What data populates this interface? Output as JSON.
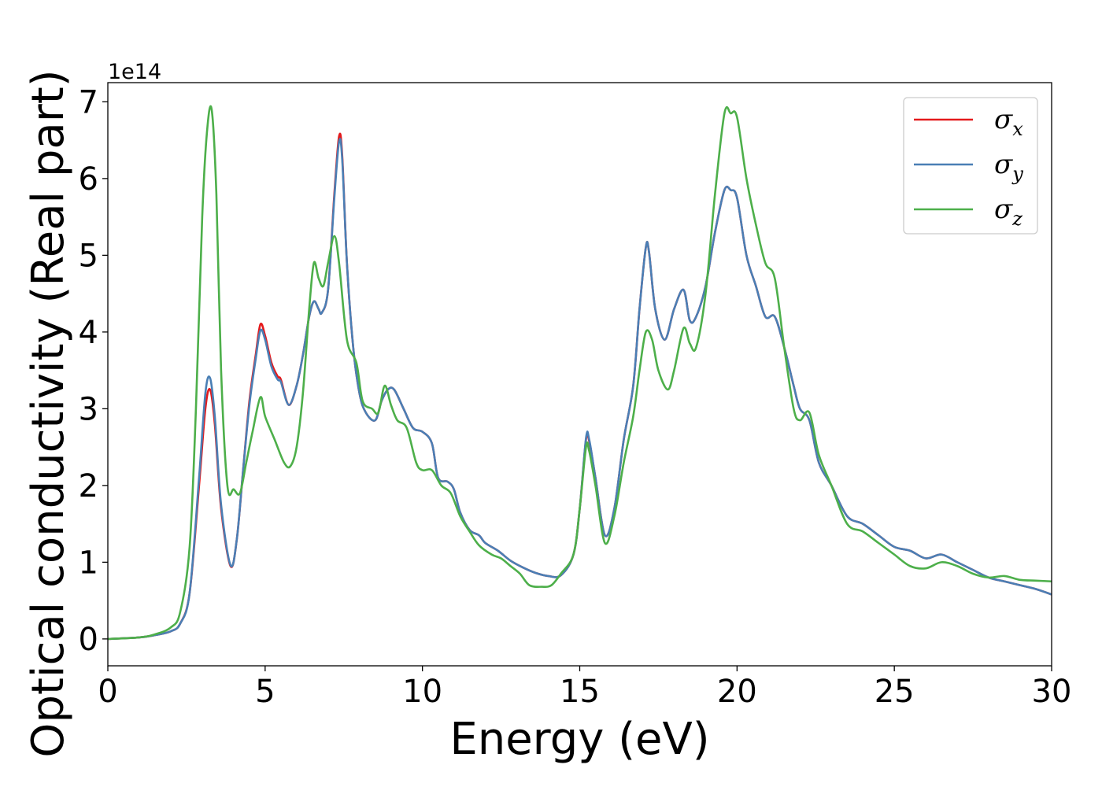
{
  "chart_data": {
    "type": "line",
    "xlabel": "Energy (eV)",
    "ylabel": "Optical conductivity (Real part)",
    "y_offset_label": "1e14",
    "xlim": [
      0,
      30
    ],
    "ylim": [
      -0.35,
      7.25
    ],
    "x_ticks": [
      0,
      5,
      10,
      15,
      20,
      25,
      30
    ],
    "y_ticks": [
      0,
      1,
      2,
      3,
      4,
      5,
      6,
      7
    ],
    "grid": false,
    "legend_position": "top-right",
    "series": [
      {
        "name": "σx",
        "legend_symbol": "σ",
        "legend_sub": "x",
        "color": "#e41a1c",
        "points": [
          [
            0,
            0
          ],
          [
            1,
            0.02
          ],
          [
            1.5,
            0.05
          ],
          [
            2,
            0.1
          ],
          [
            2.3,
            0.2
          ],
          [
            2.6,
            0.6
          ],
          [
            2.9,
            2.0
          ],
          [
            3.1,
            3.0
          ],
          [
            3.25,
            3.25
          ],
          [
            3.4,
            2.8
          ],
          [
            3.6,
            1.7
          ],
          [
            3.9,
            0.95
          ],
          [
            4.1,
            1.3
          ],
          [
            4.3,
            2.2
          ],
          [
            4.5,
            3.1
          ],
          [
            4.7,
            3.7
          ],
          [
            4.85,
            4.1
          ],
          [
            5.0,
            3.95
          ],
          [
            5.2,
            3.6
          ],
          [
            5.4,
            3.42
          ],
          [
            5.5,
            3.38
          ],
          [
            5.75,
            3.05
          ],
          [
            6.0,
            3.3
          ],
          [
            6.2,
            3.7
          ],
          [
            6.4,
            4.2
          ],
          [
            6.55,
            4.4
          ],
          [
            6.7,
            4.3
          ],
          [
            6.8,
            4.25
          ],
          [
            7.0,
            4.55
          ],
          [
            7.2,
            5.8
          ],
          [
            7.35,
            6.55
          ],
          [
            7.45,
            6.3
          ],
          [
            7.6,
            4.9
          ],
          [
            7.8,
            3.8
          ],
          [
            8.0,
            3.2
          ],
          [
            8.2,
            2.95
          ],
          [
            8.5,
            2.85
          ],
          [
            8.7,
            3.1
          ],
          [
            8.9,
            3.25
          ],
          [
            9.1,
            3.25
          ],
          [
            9.4,
            3.0
          ],
          [
            9.7,
            2.75
          ],
          [
            10.0,
            2.7
          ],
          [
            10.3,
            2.55
          ],
          [
            10.5,
            2.1
          ],
          [
            10.8,
            2.05
          ],
          [
            11.0,
            1.95
          ],
          [
            11.2,
            1.65
          ],
          [
            11.5,
            1.42
          ],
          [
            11.8,
            1.35
          ],
          [
            12.0,
            1.25
          ],
          [
            12.4,
            1.15
          ],
          [
            12.8,
            1.02
          ],
          [
            13.2,
            0.93
          ],
          [
            13.6,
            0.86
          ],
          [
            14.0,
            0.82
          ],
          [
            14.4,
            0.83
          ],
          [
            14.8,
            1.1
          ],
          [
            15.0,
            1.7
          ],
          [
            15.2,
            2.6
          ],
          [
            15.3,
            2.58
          ],
          [
            15.5,
            2.1
          ],
          [
            15.8,
            1.35
          ],
          [
            16.1,
            1.7
          ],
          [
            16.4,
            2.6
          ],
          [
            16.7,
            3.3
          ],
          [
            16.9,
            4.3
          ],
          [
            17.1,
            5.1
          ],
          [
            17.2,
            5.05
          ],
          [
            17.4,
            4.3
          ],
          [
            17.7,
            3.9
          ],
          [
            18.0,
            4.3
          ],
          [
            18.3,
            4.55
          ],
          [
            18.5,
            4.15
          ],
          [
            18.7,
            4.2
          ],
          [
            19.0,
            4.6
          ],
          [
            19.3,
            5.3
          ],
          [
            19.6,
            5.85
          ],
          [
            19.8,
            5.85
          ],
          [
            20.0,
            5.75
          ],
          [
            20.3,
            5.0
          ],
          [
            20.6,
            4.6
          ],
          [
            20.9,
            4.2
          ],
          [
            21.2,
            4.2
          ],
          [
            21.5,
            3.8
          ],
          [
            21.8,
            3.3
          ],
          [
            22.0,
            3.0
          ],
          [
            22.3,
            2.85
          ],
          [
            22.6,
            2.3
          ],
          [
            23.0,
            2.0
          ],
          [
            23.5,
            1.6
          ],
          [
            24.0,
            1.5
          ],
          [
            24.5,
            1.35
          ],
          [
            25.0,
            1.2
          ],
          [
            25.5,
            1.15
          ],
          [
            26.0,
            1.05
          ],
          [
            26.5,
            1.1
          ],
          [
            27.0,
            1.0
          ],
          [
            27.5,
            0.9
          ],
          [
            28.0,
            0.8
          ],
          [
            28.5,
            0.75
          ],
          [
            29.0,
            0.7
          ],
          [
            29.5,
            0.65
          ],
          [
            30.0,
            0.58
          ]
        ]
      },
      {
        "name": "σy",
        "legend_symbol": "σ",
        "legend_sub": "y",
        "color": "#4a7fb5",
        "points": [
          [
            0,
            0
          ],
          [
            1,
            0.02
          ],
          [
            1.5,
            0.05
          ],
          [
            2,
            0.1
          ],
          [
            2.3,
            0.2
          ],
          [
            2.6,
            0.6
          ],
          [
            2.9,
            2.1
          ],
          [
            3.1,
            3.2
          ],
          [
            3.25,
            3.4
          ],
          [
            3.4,
            2.9
          ],
          [
            3.6,
            1.75
          ],
          [
            3.9,
            0.96
          ],
          [
            4.1,
            1.3
          ],
          [
            4.3,
            2.2
          ],
          [
            4.5,
            3.05
          ],
          [
            4.7,
            3.65
          ],
          [
            4.85,
            4.02
          ],
          [
            5.0,
            3.9
          ],
          [
            5.2,
            3.55
          ],
          [
            5.4,
            3.38
          ],
          [
            5.5,
            3.35
          ],
          [
            5.75,
            3.05
          ],
          [
            6.0,
            3.3
          ],
          [
            6.2,
            3.7
          ],
          [
            6.4,
            4.2
          ],
          [
            6.55,
            4.4
          ],
          [
            6.7,
            4.3
          ],
          [
            6.8,
            4.25
          ],
          [
            7.0,
            4.55
          ],
          [
            7.2,
            5.75
          ],
          [
            7.35,
            6.48
          ],
          [
            7.45,
            6.25
          ],
          [
            7.6,
            4.9
          ],
          [
            7.8,
            3.8
          ],
          [
            8.0,
            3.2
          ],
          [
            8.2,
            2.95
          ],
          [
            8.5,
            2.85
          ],
          [
            8.7,
            3.1
          ],
          [
            8.9,
            3.25
          ],
          [
            9.1,
            3.25
          ],
          [
            9.4,
            3.0
          ],
          [
            9.7,
            2.75
          ],
          [
            10.0,
            2.7
          ],
          [
            10.3,
            2.55
          ],
          [
            10.5,
            2.1
          ],
          [
            10.8,
            2.05
          ],
          [
            11.0,
            1.95
          ],
          [
            11.2,
            1.65
          ],
          [
            11.5,
            1.42
          ],
          [
            11.8,
            1.35
          ],
          [
            12.0,
            1.25
          ],
          [
            12.4,
            1.15
          ],
          [
            12.8,
            1.02
          ],
          [
            13.2,
            0.93
          ],
          [
            13.6,
            0.86
          ],
          [
            14.0,
            0.82
          ],
          [
            14.4,
            0.83
          ],
          [
            14.8,
            1.1
          ],
          [
            15.0,
            1.7
          ],
          [
            15.2,
            2.62
          ],
          [
            15.3,
            2.6
          ],
          [
            15.5,
            2.1
          ],
          [
            15.8,
            1.35
          ],
          [
            16.1,
            1.7
          ],
          [
            16.4,
            2.6
          ],
          [
            16.7,
            3.3
          ],
          [
            16.9,
            4.3
          ],
          [
            17.1,
            5.1
          ],
          [
            17.2,
            5.05
          ],
          [
            17.4,
            4.3
          ],
          [
            17.7,
            3.9
          ],
          [
            18.0,
            4.3
          ],
          [
            18.3,
            4.55
          ],
          [
            18.5,
            4.15
          ],
          [
            18.7,
            4.2
          ],
          [
            19.0,
            4.6
          ],
          [
            19.3,
            5.3
          ],
          [
            19.6,
            5.85
          ],
          [
            19.8,
            5.85
          ],
          [
            20.0,
            5.75
          ],
          [
            20.3,
            5.0
          ],
          [
            20.6,
            4.6
          ],
          [
            20.9,
            4.2
          ],
          [
            21.2,
            4.2
          ],
          [
            21.5,
            3.8
          ],
          [
            21.8,
            3.3
          ],
          [
            22.0,
            3.0
          ],
          [
            22.3,
            2.85
          ],
          [
            22.6,
            2.3
          ],
          [
            23.0,
            2.0
          ],
          [
            23.5,
            1.6
          ],
          [
            24.0,
            1.5
          ],
          [
            24.5,
            1.35
          ],
          [
            25.0,
            1.2
          ],
          [
            25.5,
            1.15
          ],
          [
            26.0,
            1.05
          ],
          [
            26.5,
            1.1
          ],
          [
            27.0,
            1.0
          ],
          [
            27.5,
            0.9
          ],
          [
            28.0,
            0.8
          ],
          [
            28.5,
            0.75
          ],
          [
            29.0,
            0.7
          ],
          [
            29.5,
            0.65
          ],
          [
            30.0,
            0.58
          ]
        ]
      },
      {
        "name": "σz",
        "legend_symbol": "σ",
        "legend_sub": "z",
        "color": "#4daf4a",
        "points": [
          [
            0,
            0
          ],
          [
            1,
            0.02
          ],
          [
            1.5,
            0.06
          ],
          [
            2,
            0.15
          ],
          [
            2.3,
            0.35
          ],
          [
            2.6,
            1.2
          ],
          [
            2.8,
            3.0
          ],
          [
            3.0,
            5.5
          ],
          [
            3.15,
            6.6
          ],
          [
            3.3,
            6.9
          ],
          [
            3.45,
            5.8
          ],
          [
            3.6,
            3.5
          ],
          [
            3.8,
            2.0
          ],
          [
            4.0,
            1.95
          ],
          [
            4.2,
            1.9
          ],
          [
            4.4,
            2.3
          ],
          [
            4.6,
            2.7
          ],
          [
            4.85,
            3.15
          ],
          [
            5.0,
            2.9
          ],
          [
            5.3,
            2.6
          ],
          [
            5.6,
            2.3
          ],
          [
            5.8,
            2.25
          ],
          [
            6.0,
            2.5
          ],
          [
            6.2,
            3.2
          ],
          [
            6.4,
            4.3
          ],
          [
            6.55,
            4.9
          ],
          [
            6.7,
            4.7
          ],
          [
            6.85,
            4.6
          ],
          [
            7.0,
            4.9
          ],
          [
            7.2,
            5.25
          ],
          [
            7.35,
            4.9
          ],
          [
            7.6,
            3.9
          ],
          [
            7.9,
            3.6
          ],
          [
            8.1,
            3.1
          ],
          [
            8.4,
            3.0
          ],
          [
            8.6,
            2.95
          ],
          [
            8.8,
            3.3
          ],
          [
            9.0,
            3.05
          ],
          [
            9.2,
            2.85
          ],
          [
            9.5,
            2.75
          ],
          [
            9.8,
            2.3
          ],
          [
            10.0,
            2.2
          ],
          [
            10.3,
            2.2
          ],
          [
            10.6,
            2.0
          ],
          [
            10.9,
            1.9
          ],
          [
            11.2,
            1.6
          ],
          [
            11.5,
            1.4
          ],
          [
            11.8,
            1.22
          ],
          [
            12.2,
            1.1
          ],
          [
            12.5,
            1.05
          ],
          [
            12.8,
            0.95
          ],
          [
            13.1,
            0.85
          ],
          [
            13.4,
            0.7
          ],
          [
            13.8,
            0.68
          ],
          [
            14.1,
            0.7
          ],
          [
            14.4,
            0.85
          ],
          [
            14.8,
            1.1
          ],
          [
            15.0,
            1.7
          ],
          [
            15.2,
            2.5
          ],
          [
            15.3,
            2.45
          ],
          [
            15.5,
            2.0
          ],
          [
            15.8,
            1.25
          ],
          [
            16.1,
            1.6
          ],
          [
            16.4,
            2.3
          ],
          [
            16.7,
            2.9
          ],
          [
            16.9,
            3.5
          ],
          [
            17.1,
            4.0
          ],
          [
            17.3,
            3.9
          ],
          [
            17.5,
            3.5
          ],
          [
            17.8,
            3.25
          ],
          [
            18.0,
            3.5
          ],
          [
            18.3,
            4.05
          ],
          [
            18.5,
            3.85
          ],
          [
            18.7,
            3.8
          ],
          [
            19.0,
            4.5
          ],
          [
            19.3,
            5.8
          ],
          [
            19.6,
            6.85
          ],
          [
            19.8,
            6.85
          ],
          [
            20.0,
            6.8
          ],
          [
            20.3,
            6.0
          ],
          [
            20.6,
            5.4
          ],
          [
            20.9,
            4.9
          ],
          [
            21.2,
            4.7
          ],
          [
            21.5,
            3.8
          ],
          [
            21.8,
            3.0
          ],
          [
            22.0,
            2.85
          ],
          [
            22.3,
            2.95
          ],
          [
            22.6,
            2.4
          ],
          [
            23.0,
            2.0
          ],
          [
            23.5,
            1.5
          ],
          [
            24.0,
            1.4
          ],
          [
            24.5,
            1.25
          ],
          [
            25.0,
            1.1
          ],
          [
            25.5,
            0.95
          ],
          [
            26.0,
            0.92
          ],
          [
            26.5,
            1.0
          ],
          [
            27.0,
            0.95
          ],
          [
            27.5,
            0.85
          ],
          [
            28.0,
            0.8
          ],
          [
            28.5,
            0.82
          ],
          [
            29.0,
            0.77
          ],
          [
            29.5,
            0.76
          ],
          [
            30.0,
            0.75
          ]
        ]
      }
    ]
  }
}
